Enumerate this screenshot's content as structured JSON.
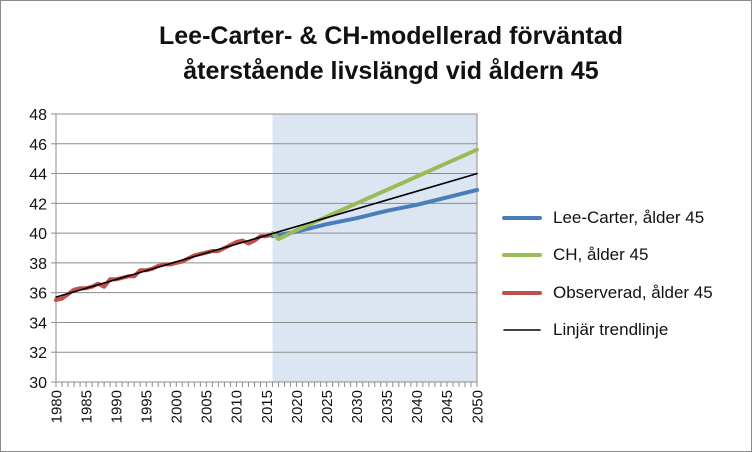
{
  "chart_data": {
    "type": "line",
    "title_lines": [
      "Lee-Carter- & CH-modellerad förväntad",
      "återstående livslängd vid åldern 45"
    ],
    "xlabel": "",
    "ylabel": "",
    "xlim": [
      1980,
      2050
    ],
    "ylim": [
      30,
      48
    ],
    "y_ticks": [
      30,
      32,
      34,
      36,
      38,
      40,
      42,
      44,
      46,
      48
    ],
    "x_ticks": [
      1980,
      1985,
      1990,
      1995,
      2000,
      2005,
      2010,
      2015,
      2020,
      2025,
      2030,
      2035,
      2040,
      2045,
      2050
    ],
    "grid": "horizontal",
    "shaded_region": {
      "from": 2016,
      "to": 2050,
      "color": "#dce6f2"
    },
    "legend_position": "right",
    "series": [
      {
        "name": "Lee-Carter, ålder 45",
        "color": "#4a7ebb",
        "x": [
          2016,
          2020,
          2025,
          2030,
          2035,
          2040,
          2045,
          2050
        ],
        "y": [
          39.8,
          40.1,
          40.6,
          41.0,
          41.5,
          41.9,
          42.4,
          42.9
        ]
      },
      {
        "name": "CH, ålder 45",
        "color": "#9bbb59",
        "x": [
          2016,
          2017,
          2020,
          2025,
          2030,
          2035,
          2040,
          2045,
          2050
        ],
        "y": [
          40.0,
          39.6,
          40.2,
          41.1,
          42.0,
          42.9,
          43.8,
          44.7,
          45.6
        ]
      },
      {
        "name": "Observerad, ålder 45",
        "color": "#c0504d",
        "x": [
          1980,
          1981,
          1982,
          1983,
          1984,
          1985,
          1986,
          1987,
          1988,
          1989,
          1990,
          1991,
          1992,
          1993,
          1994,
          1995,
          1996,
          1997,
          1998,
          1999,
          2000,
          2001,
          2002,
          2003,
          2004,
          2005,
          2006,
          2007,
          2008,
          2009,
          2010,
          2011,
          2012,
          2013,
          2014,
          2015,
          2016
        ],
        "y": [
          35.5,
          35.6,
          35.9,
          36.2,
          36.3,
          36.3,
          36.4,
          36.6,
          36.4,
          36.9,
          36.9,
          37.0,
          37.1,
          37.1,
          37.5,
          37.5,
          37.6,
          37.8,
          37.9,
          37.9,
          38.0,
          38.1,
          38.3,
          38.5,
          38.6,
          38.7,
          38.8,
          38.8,
          39.0,
          39.2,
          39.4,
          39.5,
          39.3,
          39.5,
          39.8,
          39.8,
          39.9
        ]
      },
      {
        "name": "Linjär trendlinje",
        "color": "#000000",
        "x": [
          1980,
          2050
        ],
        "y": [
          35.7,
          44.0
        ]
      }
    ]
  }
}
